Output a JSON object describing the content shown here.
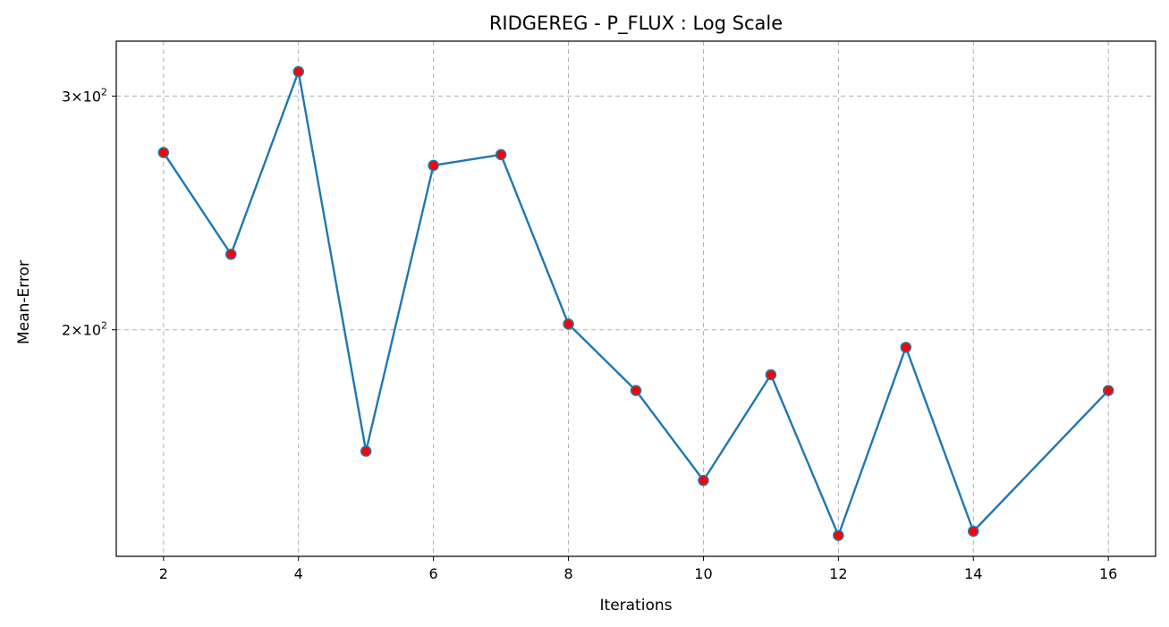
{
  "chart_data": {
    "type": "line",
    "title": "RIDGEREG - P_FLUX : Log Scale",
    "xlabel": "Iterations",
    "ylabel": "Mean-Error",
    "yscale": "log",
    "grid": true,
    "xlim": [
      1.3,
      16.7
    ],
    "ylim": [
      135,
      330
    ],
    "x_ticks": [
      2,
      4,
      6,
      8,
      10,
      12,
      14,
      16
    ],
    "y_ticks": [
      {
        "value": 200,
        "label_base": "2×10",
        "label_exp": "2"
      },
      {
        "value": 300,
        "label_base": "3×10",
        "label_exp": "2"
      }
    ],
    "series": [
      {
        "line_color": "#1f77b4",
        "marker_color": "#ff0000",
        "x": [
          2,
          3,
          4,
          5,
          6,
          7,
          8,
          9,
          10,
          11,
          12,
          13,
          14,
          16
        ],
        "y": [
          272,
          228,
          313,
          162,
          266,
          271,
          202,
          180,
          154,
          185,
          140,
          194,
          141,
          180
        ]
      }
    ]
  }
}
